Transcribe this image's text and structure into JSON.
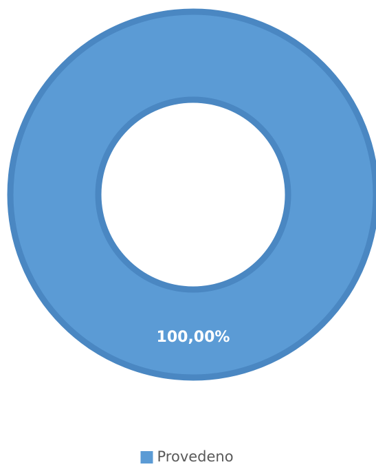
{
  "chart_data": {
    "type": "donut",
    "categories": [
      "Provedeno"
    ],
    "values": [
      100
    ],
    "value_labels": [
      "100,00%"
    ],
    "colors": [
      "#5b9bd5"
    ],
    "legend": "bottom"
  }
}
